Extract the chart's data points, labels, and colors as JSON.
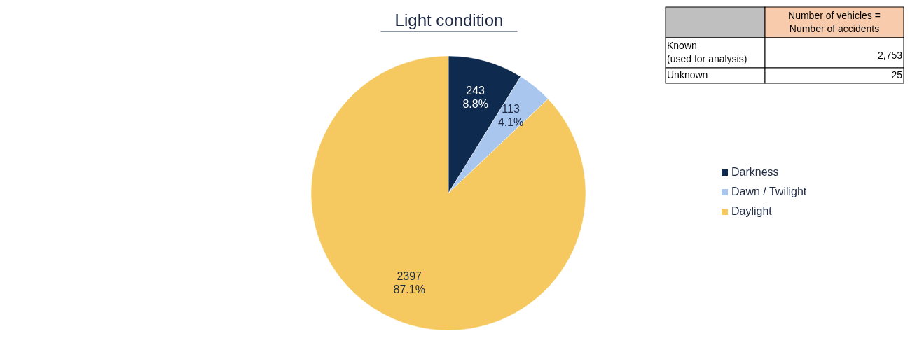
{
  "chart_data": {
    "type": "pie",
    "title": "Light condition",
    "categories": [
      "Darkness",
      "Dawn / Twilight",
      "Daylight"
    ],
    "values": [
      243,
      113,
      2397
    ],
    "colors": [
      "#0e2a4f",
      "#a9c6ef",
      "#f5c95f"
    ],
    "value_labels": [
      "243\n8.8%",
      "113\n4.1%",
      "2397\n87.1%"
    ],
    "legend": "right",
    "annotations": [
      "Number of vehicles =\nNumber of accidents",
      "Known\n(used for analysis)",
      "2,753",
      "Unknown",
      "25"
    ]
  }
}
